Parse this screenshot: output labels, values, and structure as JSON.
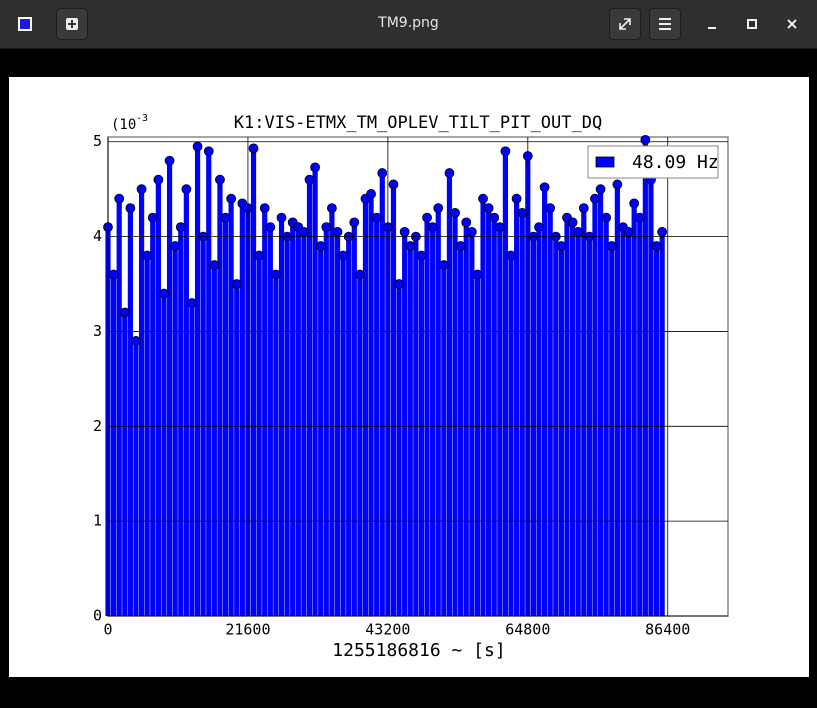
{
  "window": {
    "title": "TM9.png"
  },
  "chart_data": {
    "type": "stem",
    "title": "K1:VIS-ETMX_TM_OPLEV_TILT_PIT_OUT_DQ",
    "xlabel": "1255186816 ~ [s]",
    "y_multiplier": {
      "base": "(10",
      "exponent": "-3"
    },
    "xlim": [
      0,
      95700
    ],
    "ylim": [
      0,
      5.05
    ],
    "xticks": [
      0,
      21600,
      43200,
      64800,
      86400
    ],
    "yticks": [
      0,
      1,
      2,
      3,
      4,
      5
    ],
    "grid": true,
    "legend": "upper right",
    "x": [
      0,
      864,
      1728,
      2592,
      3456,
      4320,
      5184,
      6048,
      6912,
      7776,
      8640,
      9504,
      10368,
      11232,
      12096,
      12960,
      13824,
      14688,
      15552,
      16416,
      17280,
      18144,
      19008,
      19872,
      20736,
      21600,
      22464,
      23328,
      24192,
      25056,
      25920,
      26784,
      27648,
      28512,
      29376,
      30240,
      31104,
      31968,
      32832,
      33696,
      34560,
      35424,
      36288,
      37152,
      38016,
      38880,
      39744,
      40608,
      41472,
      42336,
      43200,
      44064,
      44928,
      45792,
      46656,
      47520,
      48384,
      49248,
      50112,
      50976,
      51840,
      52704,
      53568,
      54432,
      55296,
      56160,
      57024,
      57888,
      58752,
      59616,
      60480,
      61344,
      62208,
      63072,
      63936,
      64800,
      65664,
      66528,
      67392,
      68256,
      69120,
      69984,
      70848,
      71712,
      72576,
      73440,
      74304,
      75168,
      76032,
      76896,
      77760,
      78624,
      79488,
      80352,
      81216,
      82080,
      82944,
      83808,
      84672,
      85536
    ],
    "series": [
      {
        "name": "48.09 Hz",
        "color": "#0000ff",
        "values": [
          4.1,
          3.6,
          4.4,
          3.2,
          4.3,
          2.9,
          4.5,
          3.8,
          4.2,
          4.6,
          3.4,
          4.8,
          3.9,
          4.1,
          4.5,
          3.3,
          4.95,
          4.0,
          4.9,
          3.7,
          4.6,
          4.2,
          4.4,
          3.5,
          4.35,
          4.3,
          4.93,
          3.8,
          4.3,
          4.1,
          3.6,
          4.2,
          4.0,
          4.15,
          4.1,
          4.05,
          4.6,
          4.73,
          3.9,
          4.1,
          4.3,
          4.05,
          3.8,
          4.0,
          4.15,
          3.6,
          4.4,
          4.45,
          4.2,
          4.67,
          4.1,
          4.55,
          3.5,
          4.05,
          3.9,
          4.0,
          3.8,
          4.2,
          4.1,
          4.3,
          3.7,
          4.67,
          4.25,
          3.9,
          4.15,
          4.05,
          3.6,
          4.4,
          4.3,
          4.2,
          4.1,
          4.9,
          3.8,
          4.4,
          4.25,
          4.85,
          4.0,
          4.1,
          4.52,
          4.3,
          4.0,
          3.9,
          4.2,
          4.15,
          4.05,
          4.3,
          4.0,
          4.4,
          4.5,
          4.2,
          3.9,
          4.55,
          4.1,
          4.05,
          4.35,
          4.2,
          5.02,
          4.6,
          3.9,
          4.05
        ]
      }
    ]
  }
}
